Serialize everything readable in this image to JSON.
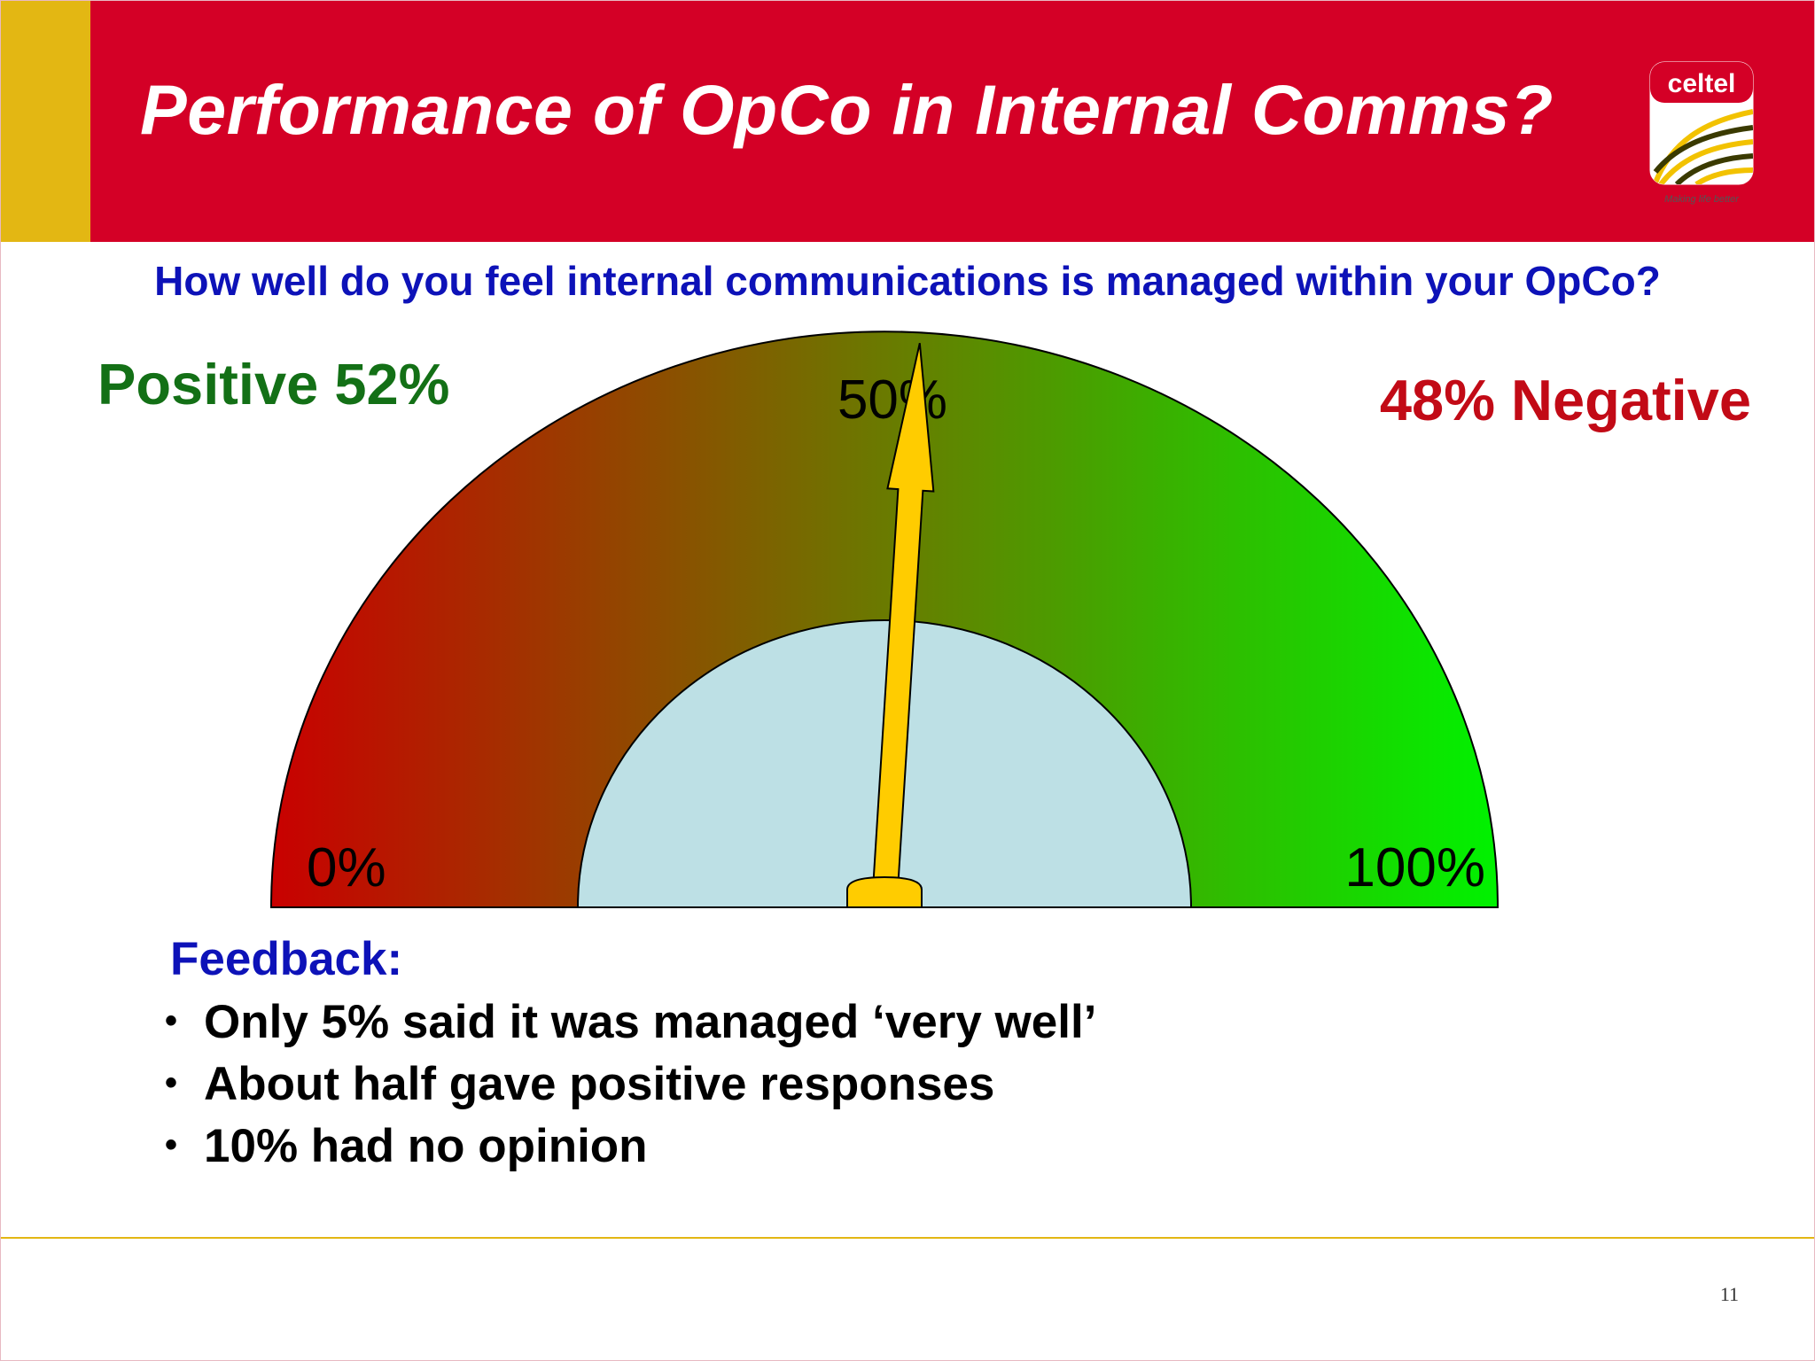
{
  "slide": {
    "title": "Performance of OpCo in Internal Comms?",
    "question": "How well do you feel internal communications is managed within your OpCo?",
    "logo": {
      "text": "celtel",
      "tagline": "Making life better",
      "icon": "celtel-logo"
    },
    "page_number": "11"
  },
  "chart_data": {
    "type": "gauge",
    "min_label": "0%",
    "mid_label": "50%",
    "max_label": "100%",
    "range": [
      0,
      100
    ],
    "needle_value": 52,
    "positive": {
      "label": "Positive 52%",
      "value": 52
    },
    "negative": {
      "label": "48% Negative",
      "value": 48
    },
    "colors": {
      "low": "#c90000",
      "mid": "#6a7a00",
      "high": "#00f200",
      "hub": "#bde0e5",
      "needle": "#ffcc00"
    }
  },
  "feedback": {
    "heading": "Feedback:",
    "items": [
      "Only 5% said it was managed ‘very well’",
      "About half gave positive responses",
      "10% had no opinion"
    ]
  },
  "colors": {
    "header": "#d40026",
    "accent": "#e3b713",
    "blue_text": "#0d12b8"
  }
}
